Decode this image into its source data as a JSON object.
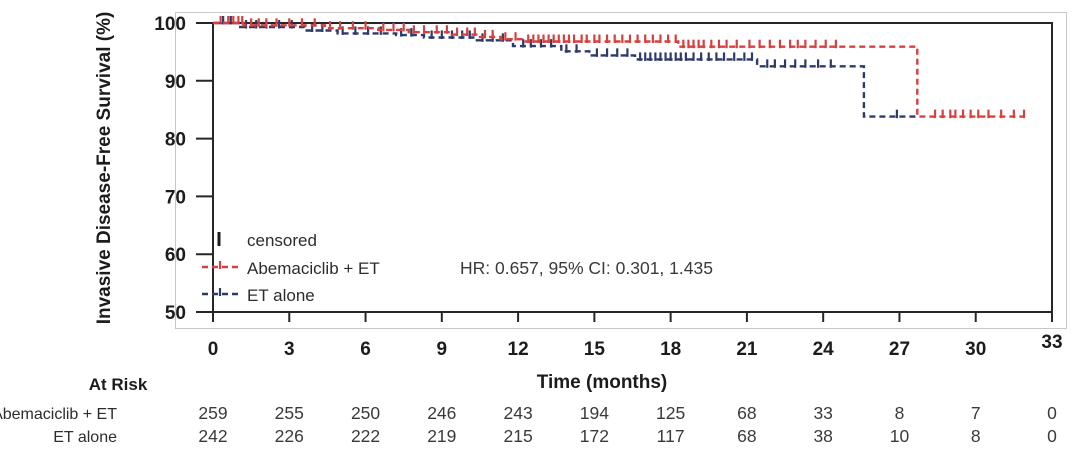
{
  "chart_data": {
    "type": "line",
    "subtype": "kaplan-meier-step",
    "title": "",
    "ylabel": "Invasive Disease-Free Survival (%)",
    "xlabel": "Time (months)",
    "xlim": [
      0,
      33
    ],
    "ylim": [
      50,
      100
    ],
    "x_ticks": [
      0,
      3,
      6,
      9,
      12,
      15,
      18,
      21,
      24,
      27,
      30,
      33
    ],
    "y_ticks": [
      100,
      90,
      80,
      70,
      60,
      50
    ],
    "grid": "off",
    "legend_position": "inside-bottom-left",
    "hr_annotation": "HR: 0.657, 95% CI: 0.301, 1.435",
    "legend": {
      "censored_label": "censored"
    },
    "series": [
      {
        "name": "Abemaciclib + ET",
        "color": "#d6403e",
        "steps": [
          [
            0,
            100
          ],
          [
            1.2,
            100
          ],
          [
            1.2,
            99.6
          ],
          [
            4.4,
            99.6
          ],
          [
            4.4,
            99.1
          ],
          [
            6.5,
            99.1
          ],
          [
            6.5,
            98.8
          ],
          [
            7.7,
            98.8
          ],
          [
            7.7,
            98.4
          ],
          [
            9.4,
            98.4
          ],
          [
            9.4,
            98.0
          ],
          [
            10.5,
            98.0
          ],
          [
            10.5,
            97.6
          ],
          [
            11.3,
            97.6
          ],
          [
            11.3,
            97.2
          ],
          [
            12.3,
            97.2
          ],
          [
            12.3,
            96.8
          ],
          [
            18.3,
            96.8
          ],
          [
            18.3,
            95.9
          ],
          [
            27.7,
            95.9
          ],
          [
            27.7,
            83.8
          ],
          [
            31.9,
            83.8
          ]
        ],
        "censor_months": [
          0.3,
          0.6,
          0.8,
          1.0,
          1.15,
          1.5,
          1.8,
          2.1,
          2.5,
          3.0,
          3.5,
          4.0,
          4.6,
          5.0,
          5.5,
          6.0,
          6.7,
          7.1,
          7.5,
          7.9,
          8.3,
          8.8,
          9.2,
          9.6,
          10.0,
          10.3,
          10.7,
          11.0,
          11.5,
          11.9,
          12.4,
          12.6,
          12.8,
          13.0,
          13.2,
          13.4,
          13.6,
          13.8,
          14.0,
          14.2,
          14.5,
          14.7,
          15.0,
          15.2,
          15.5,
          15.8,
          16.1,
          16.4,
          16.7,
          17.0,
          17.3,
          17.6,
          17.9,
          18.2,
          18.5,
          18.7,
          18.9,
          19.1,
          19.3,
          19.6,
          19.9,
          20.2,
          20.6,
          21.1,
          21.5,
          21.9,
          22.3,
          22.7,
          23.0,
          23.3,
          23.7,
          24.1,
          24.5,
          28.4,
          28.7,
          29.0,
          29.2,
          29.5,
          29.8,
          30.1,
          30.5,
          31.0,
          31.5,
          31.9
        ]
      },
      {
        "name": "ET alone",
        "color": "#2e3a69",
        "steps": [
          [
            0,
            100
          ],
          [
            1.0,
            100
          ],
          [
            1.0,
            99.3
          ],
          [
            3.6,
            99.3
          ],
          [
            3.6,
            98.7
          ],
          [
            4.9,
            98.7
          ],
          [
            4.9,
            98.2
          ],
          [
            7.2,
            98.2
          ],
          [
            7.2,
            97.9
          ],
          [
            8.3,
            97.9
          ],
          [
            8.3,
            97.5
          ],
          [
            10.3,
            97.5
          ],
          [
            10.3,
            97.0
          ],
          [
            11.8,
            97.0
          ],
          [
            11.8,
            96.0
          ],
          [
            13.7,
            96.0
          ],
          [
            13.7,
            95.1
          ],
          [
            14.8,
            95.1
          ],
          [
            14.8,
            94.4
          ],
          [
            16.6,
            94.4
          ],
          [
            16.6,
            93.7
          ],
          [
            21.4,
            93.7
          ],
          [
            21.4,
            92.5
          ],
          [
            25.6,
            92.5
          ],
          [
            25.6,
            83.8
          ],
          [
            27.7,
            83.8
          ]
        ],
        "censor_months": [
          0.4,
          0.7,
          1.3,
          1.7,
          2.1,
          2.6,
          3.1,
          3.9,
          4.3,
          5.1,
          5.6,
          6.1,
          6.6,
          7.4,
          7.8,
          8.6,
          9.0,
          9.4,
          9.8,
          10.1,
          10.6,
          11.0,
          11.4,
          12.2,
          12.5,
          12.9,
          13.3,
          13.9,
          14.3,
          15.1,
          15.5,
          15.9,
          16.3,
          16.8,
          17.0,
          17.2,
          17.4,
          17.6,
          17.8,
          18.0,
          18.2,
          18.4,
          18.6,
          18.9,
          19.2,
          19.5,
          19.8,
          20.1,
          20.5,
          20.9,
          21.2,
          21.8,
          22.1,
          22.5,
          22.9,
          23.3,
          23.8,
          24.3,
          26.9
        ]
      }
    ],
    "at_risk": {
      "header": "At Risk",
      "rows": [
        {
          "label": "Abemaciclib + ET",
          "counts": [
            259,
            255,
            250,
            246,
            243,
            194,
            125,
            68,
            33,
            8,
            7,
            0
          ]
        },
        {
          "label": "ET alone",
          "counts": [
            242,
            226,
            222,
            219,
            215,
            172,
            117,
            68,
            38,
            10,
            8,
            0
          ]
        }
      ]
    }
  }
}
